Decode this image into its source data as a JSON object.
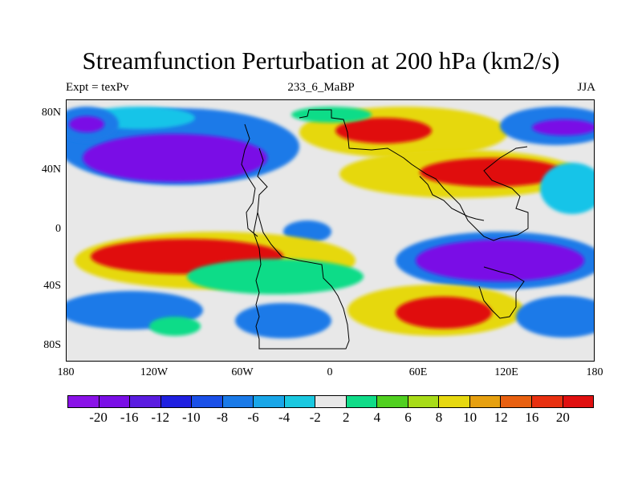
{
  "title": "Streamfunction Perturbation at 200 hPa (km2/s)",
  "subtitle": {
    "left": "Expt = texPv",
    "center": "233_6_MaBP",
    "right": "JJA"
  },
  "axes": {
    "y_ticks": [
      "80N",
      "40N",
      "0",
      "40S",
      "80S"
    ],
    "x_ticks": [
      "180",
      "120W",
      "60W",
      "0",
      "60E",
      "120E",
      "180"
    ]
  },
  "colorbar": {
    "colors": [
      "#8a12e8",
      "#7a0fe6",
      "#5a1ce0",
      "#2020e0",
      "#1a50e8",
      "#1a7ae8",
      "#19a6e8",
      "#1ac8e0",
      "#e8e8e8",
      "#10dc88",
      "#50d020",
      "#a8dc18",
      "#e6d810",
      "#e6a010",
      "#e86010",
      "#e83010",
      "#e01010"
    ],
    "labels": [
      "-20",
      "-16",
      "-12",
      "-10",
      "-8",
      "-6",
      "-4",
      "-2",
      "2",
      "4",
      "6",
      "8",
      "10",
      "12",
      "16",
      "20"
    ]
  },
  "map_colors": {
    "neutral": "#e8e8e8",
    "strong_negative": "#7a0fe6",
    "negative": "#1a7ae8",
    "weak_negative": "#19c4e8",
    "weak_positive": "#10dc88",
    "positive": "#e6d810",
    "strong_positive": "#e01010",
    "coastline": "#000000"
  }
}
